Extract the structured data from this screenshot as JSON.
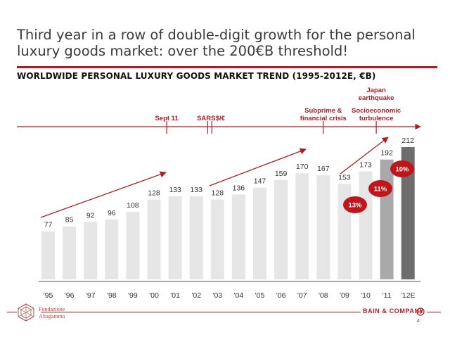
{
  "header": {
    "headline_line1": "Third year in a row of double-digit growth for the personal",
    "headline_line2": "luxury goods market: over the 200€B threshold!",
    "subtitle": "WORLDWIDE PERSONAL LUXURY GOODS MARKET TREND (1995-2012E, €B)"
  },
  "chart_data": {
    "type": "bar",
    "title": "WORLDWIDE PERSONAL LUXURY GOODS MARKET TREND (1995-2012E, €B)",
    "categories": [
      "'95",
      "'96",
      "'97",
      "'98",
      "'99",
      "'00",
      "'01",
      "'02",
      "'03",
      "'04",
      "'05",
      "'06",
      "'07",
      "'08",
      "'09",
      "'10",
      "'11",
      "'12E"
    ],
    "values": [
      77,
      85,
      92,
      96,
      108,
      128,
      133,
      133,
      128,
      136,
      147,
      159,
      170,
      167,
      153,
      173,
      192,
      212
    ],
    "bar_colors": [
      "#e6e6e6",
      "#e6e6e6",
      "#e6e6e6",
      "#e6e6e6",
      "#e6e6e6",
      "#e6e6e6",
      "#e6e6e6",
      "#e6e6e6",
      "#e6e6e6",
      "#e6e6e6",
      "#e6e6e6",
      "#e6e6e6",
      "#e6e6e6",
      "#e6e6e6",
      "#e6e6e6",
      "#e6e6e6",
      "#a9a9a9",
      "#6e6e6e"
    ],
    "ylim": [
      0,
      212
    ],
    "growth_badges": [
      {
        "label": "13%",
        "category": "'10"
      },
      {
        "label": "11%",
        "category": "'11"
      },
      {
        "label": "10%",
        "category": "'12E"
      }
    ],
    "timeline_events": [
      {
        "label": "Sept 11",
        "category": "'01"
      },
      {
        "label": "SARS",
        "category": "'03"
      },
      {
        "label": "$/€",
        "category": "'03"
      },
      {
        "label_line1": "Subprime &",
        "label_line2": "financial crisis",
        "category": "'08"
      },
      {
        "label_line1": "Japan",
        "label_line2": "earthquake",
        "label_line3": "Socioeconomic",
        "label_line4": "turbulence",
        "category": "'11"
      }
    ],
    "accent_color": "#b11d22"
  },
  "footer": {
    "left_logo_line1": "Fondazione",
    "left_logo_line2": "Altagamma",
    "right_logo": "BAIN & COMPANY",
    "page_number": "4"
  }
}
